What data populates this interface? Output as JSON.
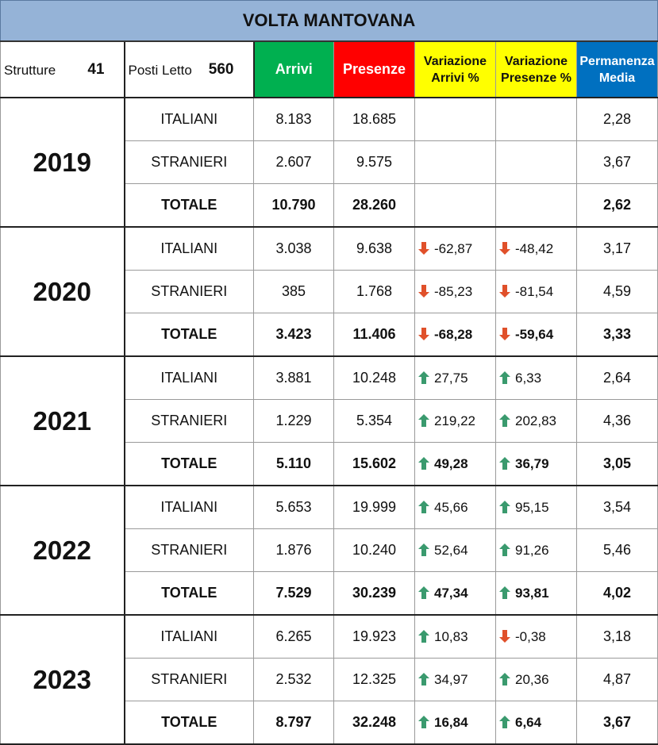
{
  "title": "VOLTA MANTOVANA",
  "info": {
    "strutture_label": "Strutture",
    "strutture_value": "41",
    "posti_label": "Posti Letto",
    "posti_value": "560"
  },
  "headers": {
    "arrivi": "Arrivi",
    "presenze": "Presenze",
    "var_arrivi": "Variazione Arrivi %",
    "var_presenze": "Variazione Presenze %",
    "permanenza": "Permanenza Media"
  },
  "colors": {
    "title_bg": "#95b3d7",
    "arrivi_bg": "#00b050",
    "presenze_bg": "#ff0000",
    "variazione_bg": "#ffff00",
    "permanenza_bg": "#0070c0",
    "arrow_up": "#3a9a6e",
    "arrow_down": "#e0502a"
  },
  "years": [
    {
      "year": "2019",
      "rows": [
        {
          "category": "ITALIANI",
          "arrivi": "8.183",
          "presenze": "18.685",
          "var_arrivi": "",
          "dir_arrivi": "",
          "var_presenze": "",
          "dir_presenze": "",
          "permanenza": "2,28"
        },
        {
          "category": "STRANIERI",
          "arrivi": "2.607",
          "presenze": "9.575",
          "var_arrivi": "",
          "dir_arrivi": "",
          "var_presenze": "",
          "dir_presenze": "",
          "permanenza": "3,67"
        },
        {
          "category": "TOTALE",
          "arrivi": "10.790",
          "presenze": "28.260",
          "var_arrivi": "",
          "dir_arrivi": "",
          "var_presenze": "",
          "dir_presenze": "",
          "permanenza": "2,62"
        }
      ]
    },
    {
      "year": "2020",
      "rows": [
        {
          "category": "ITALIANI",
          "arrivi": "3.038",
          "presenze": "9.638",
          "var_arrivi": "-62,87",
          "dir_arrivi": "down",
          "var_presenze": "-48,42",
          "dir_presenze": "down",
          "permanenza": "3,17"
        },
        {
          "category": "STRANIERI",
          "arrivi": "385",
          "presenze": "1.768",
          "var_arrivi": "-85,23",
          "dir_arrivi": "down",
          "var_presenze": "-81,54",
          "dir_presenze": "down",
          "permanenza": "4,59"
        },
        {
          "category": "TOTALE",
          "arrivi": "3.423",
          "presenze": "11.406",
          "var_arrivi": "-68,28",
          "dir_arrivi": "down",
          "var_presenze": "-59,64",
          "dir_presenze": "down",
          "permanenza": "3,33"
        }
      ]
    },
    {
      "year": "2021",
      "rows": [
        {
          "category": "ITALIANI",
          "arrivi": "3.881",
          "presenze": "10.248",
          "var_arrivi": "27,75",
          "dir_arrivi": "up",
          "var_presenze": "6,33",
          "dir_presenze": "up",
          "permanenza": "2,64"
        },
        {
          "category": "STRANIERI",
          "arrivi": "1.229",
          "presenze": "5.354",
          "var_arrivi": "219,22",
          "dir_arrivi": "up",
          "var_presenze": "202,83",
          "dir_presenze": "up",
          "permanenza": "4,36"
        },
        {
          "category": "TOTALE",
          "arrivi": "5.110",
          "presenze": "15.602",
          "var_arrivi": "49,28",
          "dir_arrivi": "up",
          "var_presenze": "36,79",
          "dir_presenze": "up",
          "permanenza": "3,05"
        }
      ]
    },
    {
      "year": "2022",
      "rows": [
        {
          "category": "ITALIANI",
          "arrivi": "5.653",
          "presenze": "19.999",
          "var_arrivi": "45,66",
          "dir_arrivi": "up",
          "var_presenze": "95,15",
          "dir_presenze": "up",
          "permanenza": "3,54"
        },
        {
          "category": "STRANIERI",
          "arrivi": "1.876",
          "presenze": "10.240",
          "var_arrivi": "52,64",
          "dir_arrivi": "up",
          "var_presenze": "91,26",
          "dir_presenze": "up",
          "permanenza": "5,46"
        },
        {
          "category": "TOTALE",
          "arrivi": "7.529",
          "presenze": "30.239",
          "var_arrivi": "47,34",
          "dir_arrivi": "up",
          "var_presenze": "93,81",
          "dir_presenze": "up",
          "permanenza": "4,02"
        }
      ]
    },
    {
      "year": "2023",
      "rows": [
        {
          "category": "ITALIANI",
          "arrivi": "6.265",
          "presenze": "19.923",
          "var_arrivi": "10,83",
          "dir_arrivi": "up",
          "var_presenze": "-0,38",
          "dir_presenze": "down",
          "permanenza": "3,18"
        },
        {
          "category": "STRANIERI",
          "arrivi": "2.532",
          "presenze": "12.325",
          "var_arrivi": "34,97",
          "dir_arrivi": "up",
          "var_presenze": "20,36",
          "dir_presenze": "up",
          "permanenza": "4,87"
        },
        {
          "category": "TOTALE",
          "arrivi": "8.797",
          "presenze": "32.248",
          "var_arrivi": "16,84",
          "dir_arrivi": "up",
          "var_presenze": "6,64",
          "dir_presenze": "up",
          "permanenza": "3,67"
        }
      ]
    }
  ]
}
